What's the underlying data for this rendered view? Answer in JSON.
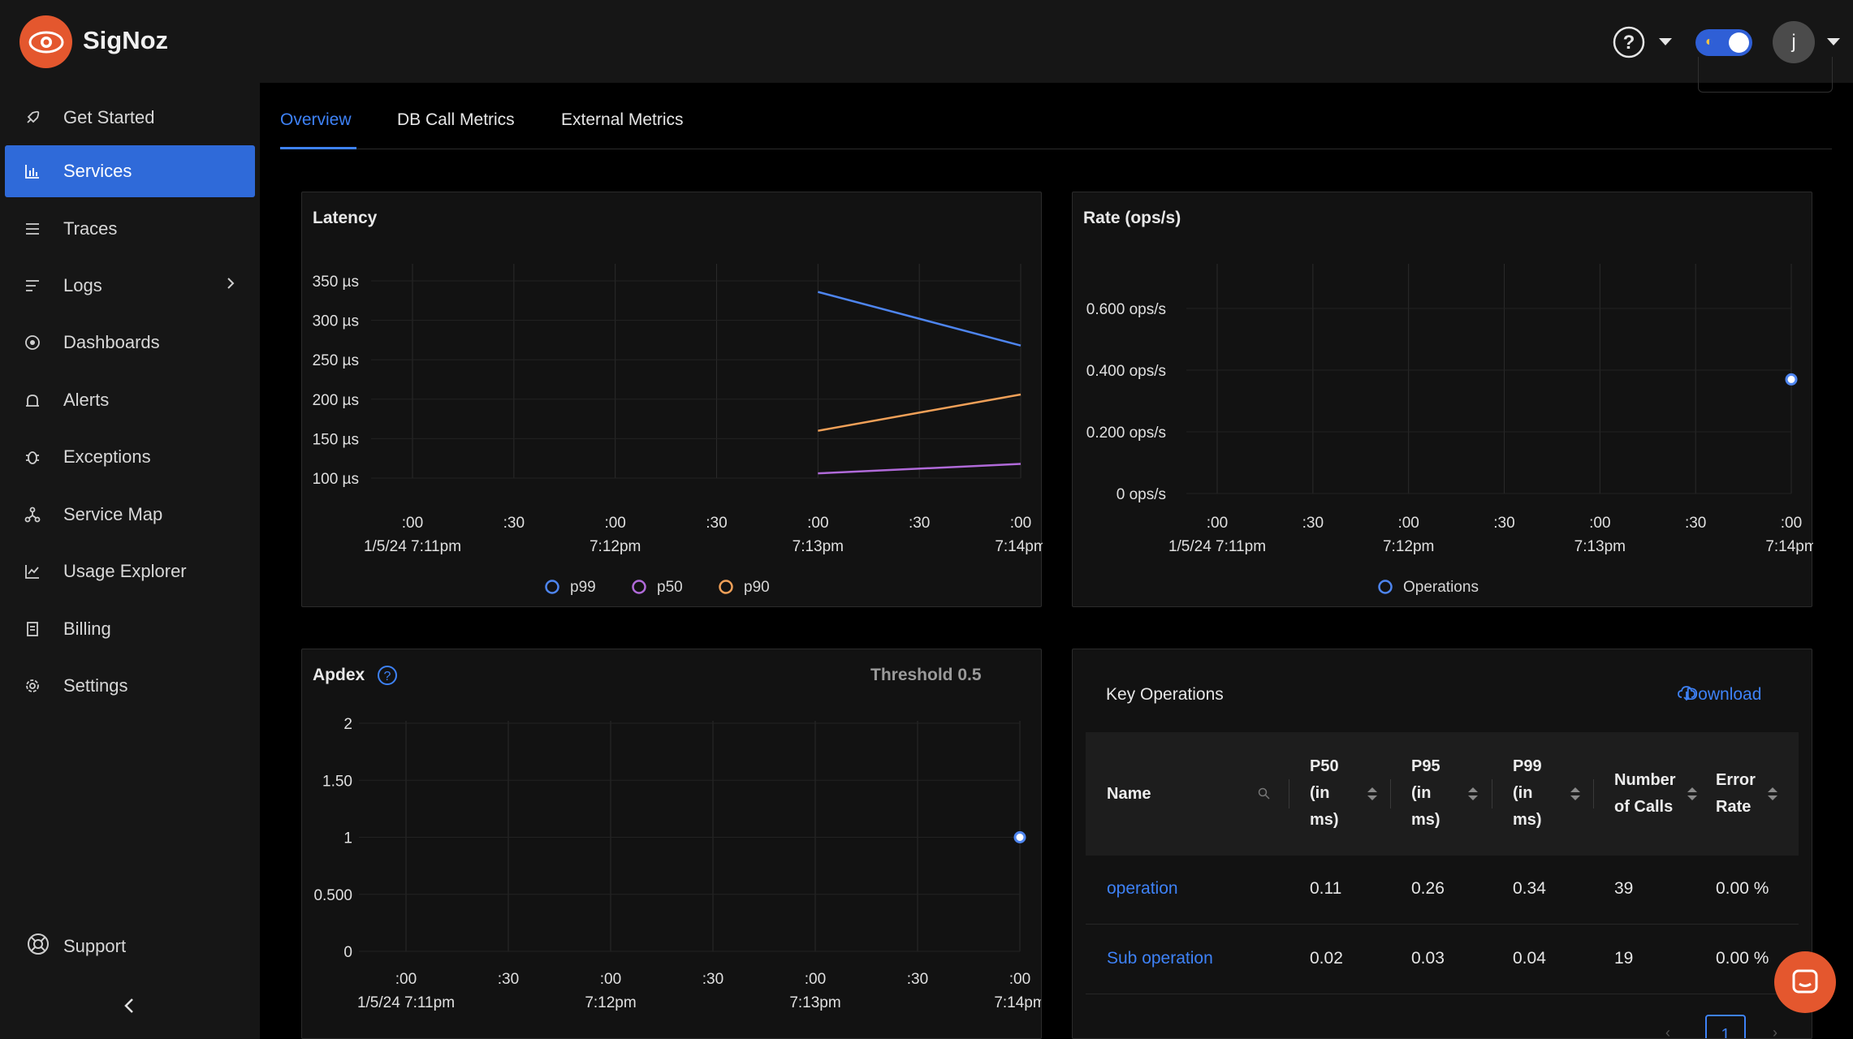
{
  "app": {
    "brand": "SigNoz",
    "avatar_initial": "j"
  },
  "sidebar": {
    "items": [
      {
        "label": "Get Started",
        "icon": "rocket-icon",
        "active": false
      },
      {
        "label": "Services",
        "icon": "bar-chart-icon",
        "active": true
      },
      {
        "label": "Traces",
        "icon": "list-icon",
        "active": false
      },
      {
        "label": "Logs",
        "icon": "logs-icon",
        "active": false,
        "expandable": true
      },
      {
        "label": "Dashboards",
        "icon": "dashboard-icon",
        "active": false
      },
      {
        "label": "Alerts",
        "icon": "alarm-icon",
        "active": false
      },
      {
        "label": "Exceptions",
        "icon": "bug-icon",
        "active": false
      },
      {
        "label": "Service Map",
        "icon": "deployment-icon",
        "active": false
      },
      {
        "label": "Usage Explorer",
        "icon": "line-chart-icon",
        "active": false
      },
      {
        "label": "Billing",
        "icon": "billing-icon",
        "active": false
      },
      {
        "label": "Settings",
        "icon": "gear-icon",
        "active": false
      }
    ],
    "support_label": "Support"
  },
  "tabs": [
    {
      "label": "Overview",
      "active": true
    },
    {
      "label": "DB Call Metrics",
      "active": false
    },
    {
      "label": "External Metrics",
      "active": false
    }
  ],
  "latency": {
    "title": "Latency",
    "legend": [
      {
        "name": "p99",
        "color": "#4e85ef"
      },
      {
        "name": "p50",
        "color": "#b06ad9"
      },
      {
        "name": "p90",
        "color": "#f0a058"
      }
    ]
  },
  "rate": {
    "title": "Rate (ops/s)",
    "legend": [
      {
        "name": "Operations",
        "color": "#4e85ef"
      }
    ]
  },
  "apdex": {
    "title": "Apdex",
    "threshold_label": "Threshold 0.5"
  },
  "key_operations": {
    "title": "Key Operations",
    "download_label": "Download",
    "columns": [
      {
        "label": "Name"
      },
      {
        "label": "P50\n(in\nms)"
      },
      {
        "label": "P95\n(in\nms)"
      },
      {
        "label": "P99\n(in\nms)"
      },
      {
        "label": "Number\nof Calls"
      },
      {
        "label": "Error\nRate"
      }
    ],
    "rows": [
      {
        "name": "operation",
        "p50": "0.11",
        "p95": "0.26",
        "p99": "0.34",
        "calls": "39",
        "error_rate": "0.00 %"
      },
      {
        "name": "Sub operation",
        "p50": "0.02",
        "p95": "0.03",
        "p99": "0.04",
        "calls": "19",
        "error_rate": "0.00 %"
      }
    ],
    "current_page": "1"
  },
  "chart_data": [
    {
      "type": "line",
      "title": "Latency",
      "x_ticks": [
        ":00\n1/5/24 7:11pm",
        ":30",
        ":00\n7:12pm",
        ":30",
        ":00\n7:13pm",
        ":30",
        ":00\n7:14pm"
      ],
      "x": [
        "7:13pm",
        "7:14pm"
      ],
      "y_ticks": [
        "350 µs",
        "300 µs",
        "250 µs",
        "200 µs",
        "150 µs",
        "100 µs"
      ],
      "ylim": [
        100,
        350
      ],
      "series": [
        {
          "name": "p99",
          "values": [
            336,
            268
          ]
        },
        {
          "name": "p90",
          "values": [
            160,
            206
          ]
        },
        {
          "name": "p50",
          "values": [
            106,
            118
          ]
        }
      ],
      "legend": "bottom"
    },
    {
      "type": "scatter",
      "title": "Rate (ops/s)",
      "x_ticks": [
        ":00\n1/5/24 7:11pm",
        ":30",
        ":00\n7:12pm",
        ":30",
        ":00\n7:13pm",
        ":30",
        ":00\n7:14pm"
      ],
      "y_ticks": [
        "0.600 ops/s",
        "0.400 ops/s",
        "0.200 ops/s",
        "0 ops/s"
      ],
      "ylim": [
        0,
        0.6
      ],
      "series": [
        {
          "name": "Operations",
          "points": [
            {
              "x": "7:14pm",
              "y": 0.37
            }
          ]
        }
      ],
      "legend": "bottom"
    },
    {
      "type": "scatter",
      "title": "Apdex",
      "x_ticks": [
        ":00\n1/5/24 7:11pm",
        ":30",
        ":00\n7:12pm",
        ":30",
        ":00\n7:13pm",
        ":30",
        ":00\n7:14pm"
      ],
      "y_ticks": [
        "2",
        "1.50",
        "1",
        "0.500",
        "0"
      ],
      "ylim": [
        0,
        2
      ],
      "series": [
        {
          "name": "Apdex",
          "points": [
            {
              "x": "7:14pm",
              "y": 1
            }
          ]
        }
      ]
    }
  ]
}
